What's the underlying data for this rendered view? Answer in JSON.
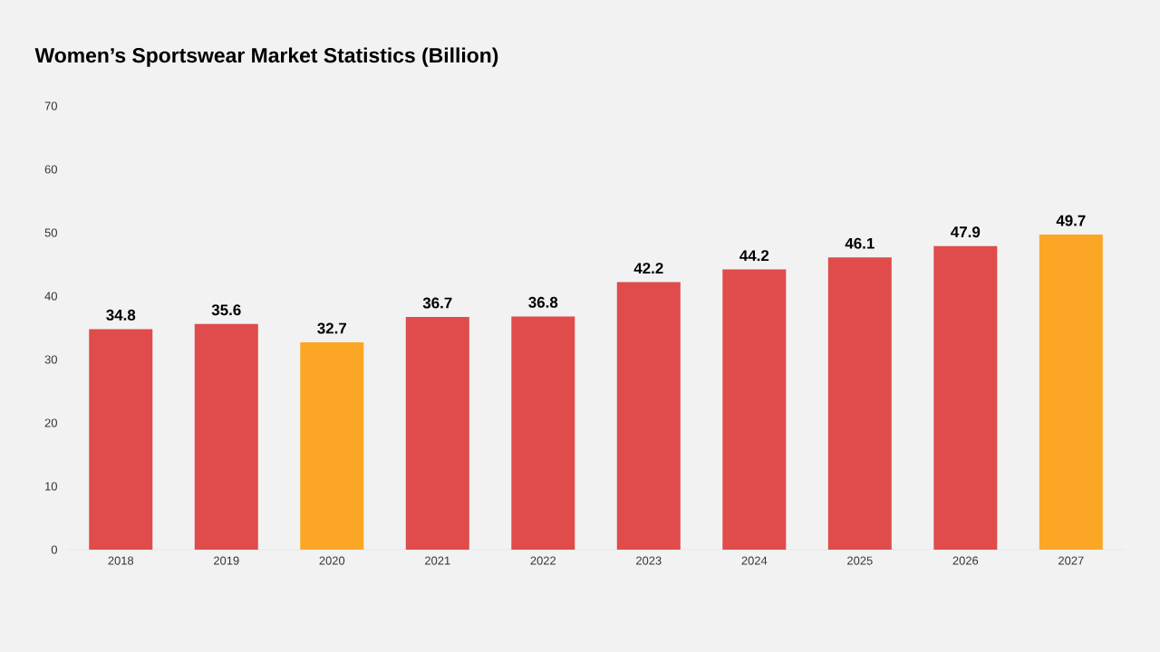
{
  "chart_data": {
    "type": "bar",
    "title": "Women’s Sportswear Market Statistics (Billion)",
    "categories": [
      "2018",
      "2019",
      "2020",
      "2021",
      "2022",
      "2023",
      "2024",
      "2025",
      "2026",
      "2027"
    ],
    "values": [
      34.8,
      35.6,
      32.7,
      36.7,
      36.8,
      42.2,
      44.2,
      46.1,
      47.9,
      49.7
    ],
    "colors": [
      "#e04b4b",
      "#e04b4b",
      "#fca625",
      "#e04b4b",
      "#e04b4b",
      "#e04b4b",
      "#e04b4b",
      "#e04b4b",
      "#e04b4b",
      "#fca625"
    ],
    "ylim": [
      0,
      70
    ],
    "yticks": [
      0,
      10,
      20,
      30,
      40,
      50,
      60,
      70
    ],
    "data_labels": true,
    "grid": false
  }
}
